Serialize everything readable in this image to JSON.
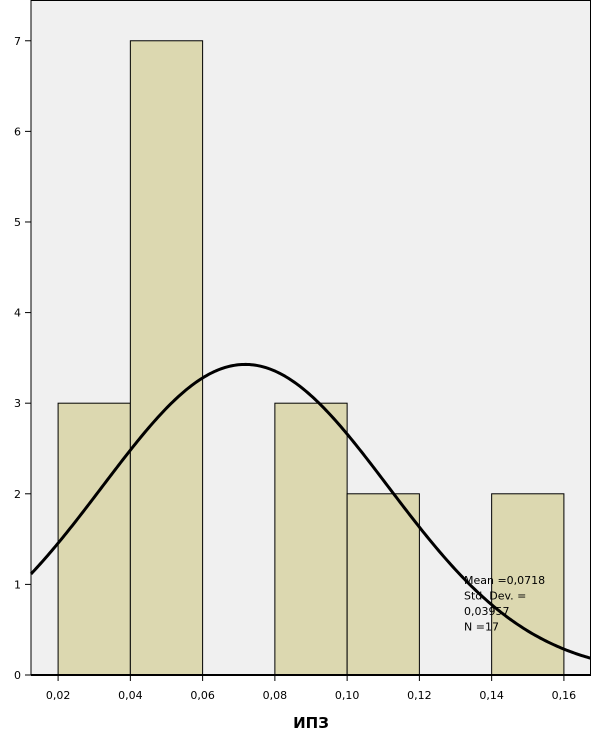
{
  "chart_data": {
    "type": "bar",
    "subtype": "histogram",
    "xlabel": "ИПЗ",
    "ylabel": "",
    "bin_width": 0.02,
    "bins": [
      {
        "start": 0.02,
        "end": 0.04,
        "count": 3
      },
      {
        "start": 0.04,
        "end": 0.06,
        "count": 7
      },
      {
        "start": 0.06,
        "end": 0.08,
        "count": 0
      },
      {
        "start": 0.08,
        "end": 0.1,
        "count": 3
      },
      {
        "start": 0.1,
        "end": 0.12,
        "count": 2
      },
      {
        "start": 0.12,
        "end": 0.14,
        "count": 0
      },
      {
        "start": 0.14,
        "end": 0.16,
        "count": 2
      }
    ],
    "xlim": [
      0.0125,
      0.1675
    ],
    "ylim": [
      0,
      7.45
    ],
    "x_ticks": [
      {
        "value": 0.02,
        "label": "0,02"
      },
      {
        "value": 0.04,
        "label": "0,04"
      },
      {
        "value": 0.06,
        "label": "0,06"
      },
      {
        "value": 0.08,
        "label": "0,08"
      },
      {
        "value": 0.1,
        "label": "0,10"
      },
      {
        "value": 0.12,
        "label": "0,12"
      },
      {
        "value": 0.14,
        "label": "0,14"
      },
      {
        "value": 0.16,
        "label": "0,16"
      }
    ],
    "y_ticks": [
      {
        "value": 0,
        "label": "0"
      },
      {
        "value": 1,
        "label": "1"
      },
      {
        "value": 2,
        "label": "2"
      },
      {
        "value": 3,
        "label": "3"
      },
      {
        "value": 4,
        "label": "4"
      },
      {
        "value": 5,
        "label": "5"
      },
      {
        "value": 6,
        "label": "6"
      },
      {
        "value": 7,
        "label": "7"
      }
    ],
    "normal_curve": {
      "mean": 0.0718,
      "std_dev": 0.03957,
      "n": 17
    },
    "stats_text": [
      "Mean =0,0718",
      "Std. Dev. =",
      "0,03957",
      "N =17"
    ],
    "grid": false,
    "colors": {
      "plot_background": "#f0f0f0",
      "bar_fill": "#dcd8b0",
      "bar_stroke": "#000000",
      "curve": "#000000"
    }
  }
}
